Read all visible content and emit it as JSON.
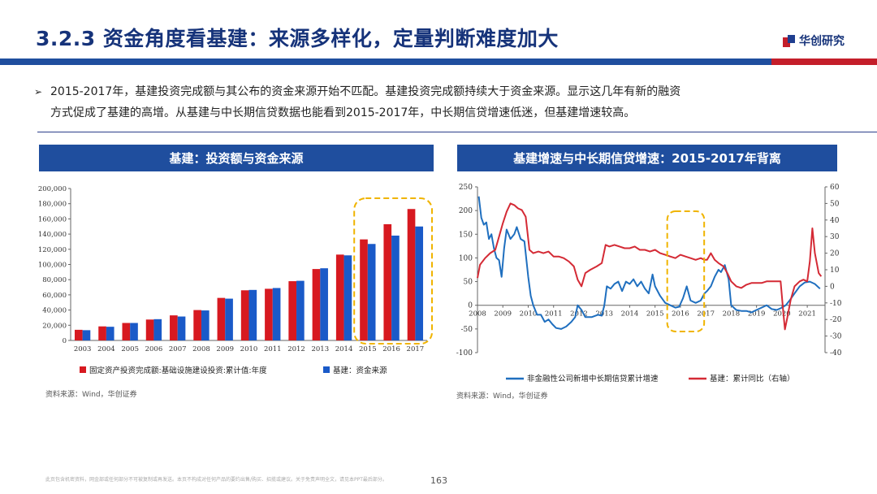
{
  "slide": {
    "title": "3.2.3 资金角度看基建：来源多样化，定量判断难度加大",
    "logo_text": "华创研究",
    "bullet_line1": "2015-2017年，基建投资完成额与其公布的资金来源开始不匹配。基建投资完成额持续大于资金来源。显示这几年有新的融资",
    "bullet_line2": "方式促成了基建的高增。从基建与中长期信贷数据也能看到2015-2017年，中长期信贷增速低迷，但基建增速较高。",
    "disclaimer": "此页包含机密资料，网金部或任何部分不可被复制或再发送。本页不构成对任何产品的要约出售/购买、招揽或建议。关于免责声明全文，请见本PPT最后部分。",
    "page_number": "163",
    "colors": {
      "primary_blue": "#1f4e9e",
      "accent_red": "#c41e2a",
      "title_blue": "#16337a",
      "highlight_gold": "#f0b400"
    }
  },
  "left_panel": {
    "header": "基建：投资额与资金来源",
    "source": "资料来源：Wind，华创证券"
  },
  "right_panel": {
    "header": "基建增速与中长期信贷增速：2015-2017年背离",
    "source": "资料来源：Wind，华创证券"
  },
  "chart_data": [
    {
      "type": "bar",
      "categories": [
        "2003",
        "2004",
        "2005",
        "2006",
        "2007",
        "2008",
        "2009",
        "2010",
        "2011",
        "2012",
        "2013",
        "2014",
        "2015",
        "2016",
        "2017"
      ],
      "series": [
        {
          "name": "固定资产投资完成额:基础设施建设投资:累计值:年度",
          "color": "#d71920",
          "values": [
            14000,
            18500,
            23000,
            27500,
            33000,
            40000,
            56000,
            66000,
            68000,
            78000,
            94000,
            113000,
            133000,
            153000,
            173000
          ]
        },
        {
          "name": "基建：资金来源",
          "color": "#1a5ac8",
          "values": [
            13500,
            18000,
            23000,
            28000,
            31500,
            39500,
            55000,
            66500,
            69000,
            78500,
            95000,
            112000,
            127000,
            138000,
            150000
          ]
        }
      ],
      "ylim": [
        0,
        200000
      ],
      "yticks": [
        "0",
        "20,000",
        "40,000",
        "60,000",
        "80,000",
        "100,000",
        "120,000",
        "140,000",
        "160,000",
        "180,000",
        "200,000"
      ],
      "legend": "bottom",
      "highlight": {
        "from": "2015",
        "to": "2017",
        "style": "dashed-rounded-box"
      }
    },
    {
      "type": "line",
      "x_ticks": [
        "2008",
        "2009",
        "2010",
        "2011",
        "2012",
        "2013",
        "2014",
        "2015",
        "2016",
        "2017",
        "2018",
        "2019",
        "2020",
        "2021"
      ],
      "left_axis": {
        "range": [
          -100,
          250
        ],
        "ticks": [
          "-100",
          "-50",
          "0",
          "50",
          "100",
          "150",
          "200",
          "250"
        ]
      },
      "right_axis": {
        "range": [
          -40,
          60
        ],
        "ticks": [
          "-40",
          "-30",
          "-20",
          "-10",
          "0",
          "10",
          "20",
          "30",
          "40",
          "50",
          "60"
        ]
      },
      "x_range": [
        2008.0,
        2021.7
      ],
      "series": [
        {
          "name": "非金融性公司新增中长期信贷累计增速",
          "axis": "left",
          "color": "#1f6fbf",
          "points": [
            [
              2008.05,
              230
            ],
            [
              2008.15,
              185
            ],
            [
              2008.25,
              170
            ],
            [
              2008.35,
              175
            ],
            [
              2008.45,
              140
            ],
            [
              2008.55,
              150
            ],
            [
              2008.65,
              120
            ],
            [
              2008.75,
              100
            ],
            [
              2008.85,
              95
            ],
            [
              2008.95,
              60
            ],
            [
              2009.05,
              120
            ],
            [
              2009.15,
              160
            ],
            [
              2009.3,
              140
            ],
            [
              2009.45,
              150
            ],
            [
              2009.55,
              165
            ],
            [
              2009.7,
              140
            ],
            [
              2009.85,
              135
            ],
            [
              2010.0,
              60
            ],
            [
              2010.1,
              20
            ],
            [
              2010.2,
              0
            ],
            [
              2010.35,
              -20
            ],
            [
              2010.5,
              -20
            ],
            [
              2010.65,
              -35
            ],
            [
              2010.8,
              -30
            ],
            [
              2010.95,
              -40
            ],
            [
              2011.1,
              -48
            ],
            [
              2011.3,
              -50
            ],
            [
              2011.5,
              -45
            ],
            [
              2011.7,
              -35
            ],
            [
              2011.85,
              -25
            ],
            [
              2011.95,
              0
            ],
            [
              2012.1,
              -10
            ],
            [
              2012.25,
              -25
            ],
            [
              2012.5,
              -25
            ],
            [
              2012.75,
              -20
            ],
            [
              2012.9,
              -22
            ],
            [
              2013.0,
              0
            ],
            [
              2013.1,
              40
            ],
            [
              2013.25,
              35
            ],
            [
              2013.4,
              45
            ],
            [
              2013.55,
              50
            ],
            [
              2013.7,
              30
            ],
            [
              2013.85,
              50
            ],
            [
              2014.0,
              45
            ],
            [
              2014.15,
              55
            ],
            [
              2014.3,
              40
            ],
            [
              2014.45,
              50
            ],
            [
              2014.6,
              35
            ],
            [
              2014.75,
              25
            ],
            [
              2014.9,
              65
            ],
            [
              2015.0,
              40
            ],
            [
              2015.2,
              20
            ],
            [
              2015.4,
              5
            ],
            [
              2015.6,
              0
            ],
            [
              2015.8,
              -5
            ],
            [
              2015.95,
              -3
            ],
            [
              2016.1,
              15
            ],
            [
              2016.25,
              40
            ],
            [
              2016.4,
              10
            ],
            [
              2016.6,
              5
            ],
            [
              2016.8,
              10
            ],
            [
              2016.95,
              25
            ],
            [
              2017.05,
              30
            ],
            [
              2017.2,
              40
            ],
            [
              2017.35,
              60
            ],
            [
              2017.5,
              75
            ],
            [
              2017.6,
              70
            ],
            [
              2017.75,
              85
            ],
            [
              2017.9,
              55
            ],
            [
              2018.0,
              0
            ],
            [
              2018.2,
              -10
            ],
            [
              2018.4,
              -12
            ],
            [
              2018.6,
              -12
            ],
            [
              2018.8,
              -15
            ],
            [
              2019.0,
              -10
            ],
            [
              2019.2,
              -5
            ],
            [
              2019.4,
              0
            ],
            [
              2019.6,
              -8
            ],
            [
              2019.8,
              -10
            ],
            [
              2020.0,
              -5
            ],
            [
              2020.15,
              0
            ],
            [
              2020.3,
              10
            ],
            [
              2020.5,
              25
            ],
            [
              2020.7,
              40
            ],
            [
              2020.9,
              48
            ],
            [
              2021.1,
              50
            ],
            [
              2021.3,
              45
            ],
            [
              2021.5,
              35
            ]
          ]
        },
        {
          "name": "基建：累计同比（右轴）",
          "axis": "right",
          "color": "#d42a35",
          "points": [
            [
              2008.0,
              5
            ],
            [
              2008.1,
              13
            ],
            [
              2008.3,
              17
            ],
            [
              2008.5,
              20
            ],
            [
              2008.7,
              22
            ],
            [
              2008.85,
              30
            ],
            [
              2009.0,
              38
            ],
            [
              2009.15,
              45
            ],
            [
              2009.3,
              50
            ],
            [
              2009.45,
              49
            ],
            [
              2009.6,
              47
            ],
            [
              2009.75,
              46
            ],
            [
              2009.9,
              42
            ],
            [
              2010.05,
              22
            ],
            [
              2010.2,
              20
            ],
            [
              2010.4,
              21
            ],
            [
              2010.6,
              20
            ],
            [
              2010.8,
              21
            ],
            [
              2011.0,
              18
            ],
            [
              2011.2,
              18
            ],
            [
              2011.4,
              17
            ],
            [
              2011.6,
              15
            ],
            [
              2011.8,
              12
            ],
            [
              2011.95,
              4
            ],
            [
              2012.1,
              0
            ],
            [
              2012.25,
              8
            ],
            [
              2012.45,
              10
            ],
            [
              2012.7,
              12
            ],
            [
              2012.9,
              14
            ],
            [
              2013.05,
              25
            ],
            [
              2013.2,
              24
            ],
            [
              2013.4,
              25
            ],
            [
              2013.6,
              24
            ],
            [
              2013.8,
              23
            ],
            [
              2014.0,
              23
            ],
            [
              2014.2,
              24
            ],
            [
              2014.4,
              22
            ],
            [
              2014.6,
              22
            ],
            [
              2014.8,
              21
            ],
            [
              2015.0,
              22
            ],
            [
              2015.2,
              20
            ],
            [
              2015.4,
              19
            ],
            [
              2015.6,
              18
            ],
            [
              2015.8,
              17
            ],
            [
              2016.0,
              19
            ],
            [
              2016.2,
              18
            ],
            [
              2016.4,
              17
            ],
            [
              2016.6,
              16
            ],
            [
              2016.8,
              17
            ],
            [
              2016.95,
              16
            ],
            [
              2017.05,
              16
            ],
            [
              2017.2,
              20
            ],
            [
              2017.35,
              16
            ],
            [
              2017.5,
              14
            ],
            [
              2017.7,
              12
            ],
            [
              2017.85,
              8
            ],
            [
              2018.0,
              3
            ],
            [
              2018.2,
              0
            ],
            [
              2018.4,
              -1
            ],
            [
              2018.6,
              1
            ],
            [
              2018.8,
              2
            ],
            [
              2019.0,
              2
            ],
            [
              2019.2,
              2
            ],
            [
              2019.4,
              3
            ],
            [
              2019.6,
              3
            ],
            [
              2019.8,
              3
            ],
            [
              2019.95,
              3
            ],
            [
              2020.05,
              -15
            ],
            [
              2020.12,
              -26
            ],
            [
              2020.2,
              -20
            ],
            [
              2020.35,
              -8
            ],
            [
              2020.5,
              0
            ],
            [
              2020.7,
              3
            ],
            [
              2020.85,
              4
            ],
            [
              2021.0,
              3
            ],
            [
              2021.1,
              15
            ],
            [
              2021.2,
              35
            ],
            [
              2021.3,
              20
            ],
            [
              2021.45,
              8
            ],
            [
              2021.55,
              6
            ]
          ]
        }
      ],
      "legend": "bottom",
      "highlight": {
        "from": "2015",
        "to": "2017",
        "style": "dashed-rounded-box"
      }
    }
  ]
}
